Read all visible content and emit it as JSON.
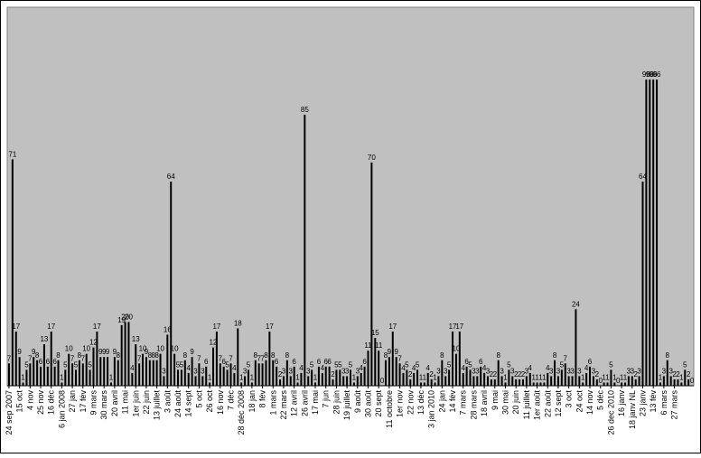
{
  "chart_data": {
    "type": "bar",
    "color": "#000000",
    "background": "#c0c0c0",
    "categories": [
      "24 sep 2007",
      null,
      null,
      "15 oct",
      null,
      null,
      "4 nov",
      null,
      null,
      "25 nov",
      null,
      null,
      "16 déc",
      null,
      null,
      "6 jan 2008",
      null,
      null,
      "27 jan",
      null,
      null,
      "17 fév",
      null,
      null,
      "9 mars",
      null,
      null,
      "30 mars",
      null,
      null,
      "20 avril",
      null,
      null,
      "11 mai",
      null,
      null,
      "1er juin",
      null,
      null,
      "22 juin",
      null,
      null,
      "13 juillet",
      null,
      null,
      "3 août",
      null,
      null,
      "24 août",
      null,
      null,
      "14 sept",
      null,
      null,
      "5 oct",
      null,
      null,
      "26 oct",
      null,
      null,
      "16 nov",
      null,
      null,
      "7 déc",
      null,
      null,
      "28 déc 2008",
      null,
      null,
      "18 jan",
      null,
      null,
      "8 fév",
      null,
      null,
      "1 mars",
      null,
      null,
      "22 mars",
      null,
      null,
      "12 avril",
      null,
      null,
      "26 avril",
      null,
      null,
      "17 mai",
      null,
      null,
      "7 jun",
      null,
      null,
      "28 juin",
      null,
      null,
      "19 juillet",
      null,
      null,
      "9 août",
      null,
      null,
      "30 août",
      null,
      null,
      "20 sept",
      null,
      null,
      "11 octobre",
      null,
      null,
      "1er nov",
      null,
      null,
      "22 nov",
      null,
      null,
      "13 déc",
      null,
      null,
      "3 jan 2010",
      null,
      null,
      "24 jan",
      null,
      null,
      "14 fév",
      null,
      null,
      "7 mars",
      null,
      null,
      "28 mars",
      null,
      null,
      "18 avril",
      null,
      null,
      "9 mai",
      null,
      null,
      "30 mai",
      null,
      null,
      "20 juin",
      null,
      null,
      "11 juillet",
      null,
      null,
      "1er août",
      null,
      null,
      "22 août",
      null,
      null,
      "12 sept",
      null,
      null,
      "3 oct",
      null,
      null,
      "24 oct",
      null,
      null,
      "14 nov",
      null,
      null,
      "5 déc",
      null,
      null,
      "26 dec 2010",
      null,
      null,
      "16 janv",
      null,
      null,
      "18 janv NL",
      null,
      null,
      "23 janv",
      null,
      null,
      "13 fév",
      null,
      null,
      "6 mars",
      null,
      null,
      "27 mars",
      null,
      null,
      null,
      null,
      null
    ],
    "values": [
      7,
      71,
      17,
      9,
      1,
      5,
      7,
      9,
      8,
      6,
      13,
      6,
      17,
      6,
      8,
      1,
      5,
      10,
      7,
      5,
      8,
      7,
      10,
      5,
      12,
      17,
      9,
      9,
      9,
      1,
      9,
      8,
      19,
      20,
      20,
      4,
      13,
      7,
      10,
      9,
      8,
      8,
      8,
      10,
      3,
      16,
      64,
      10,
      5,
      5,
      8,
      4,
      9,
      3,
      7,
      3,
      6,
      1,
      12,
      17,
      7,
      6,
      5,
      7,
      4,
      18,
      1,
      3,
      5,
      1,
      8,
      7,
      7,
      8,
      17,
      8,
      6,
      2,
      3,
      8,
      3,
      6,
      1,
      4,
      85,
      3,
      5,
      1,
      6,
      4,
      6,
      6,
      2,
      5,
      5,
      3,
      3,
      5,
      1,
      3,
      4,
      6,
      11,
      70,
      15,
      11,
      0,
      8,
      9,
      17,
      9,
      7,
      4,
      5,
      2,
      4,
      5,
      1,
      1,
      4,
      2,
      1,
      3,
      8,
      3,
      5,
      17,
      10,
      17,
      4,
      6,
      5,
      3,
      3,
      6,
      4,
      3,
      2,
      2,
      8,
      3,
      1,
      5,
      3,
      2,
      2,
      2,
      3,
      4,
      1,
      1,
      1,
      1,
      4,
      3,
      8,
      3,
      5,
      7,
      3,
      3,
      24,
      3,
      1,
      4,
      6,
      3,
      2,
      0,
      1,
      1,
      5,
      1,
      0,
      1,
      1,
      3,
      3,
      2,
      3,
      64,
      96,
      96,
      96,
      96,
      1,
      3,
      8,
      3,
      2,
      2,
      1,
      5,
      2,
      0
    ]
  }
}
